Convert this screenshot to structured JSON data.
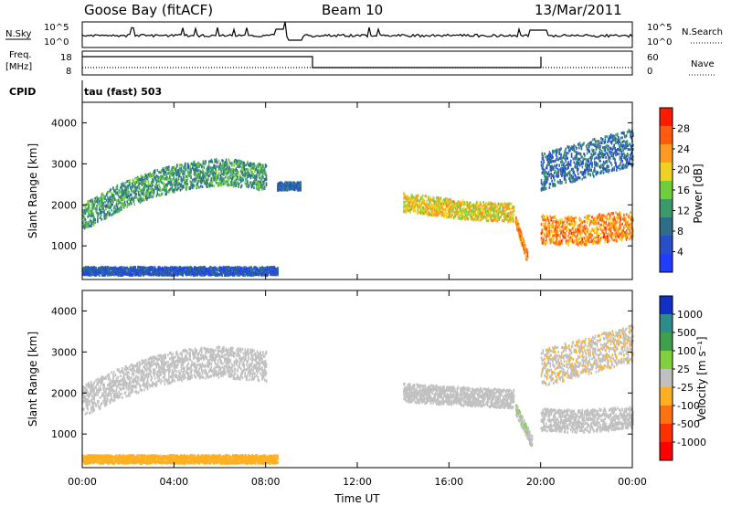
{
  "header": {
    "station": "Goose Bay (fitACF)",
    "beam": "Beam 10",
    "date": "13/Mar/2011"
  },
  "strips": {
    "nsky_label": "N.Sky",
    "nsearch_label": "N.Search",
    "freq_label_line1": "Freq.",
    "freq_label_line2": "[MHz]",
    "nave_label": "Nave",
    "cpid_label": "CPID",
    "cpid_value": "tau (fast) 503",
    "noise_ticks": [
      "10^5",
      "10^0"
    ],
    "freq_ticks": [
      "18",
      "8"
    ],
    "nave_ticks": [
      "60",
      "0"
    ]
  },
  "colors": {
    "ground_scatter": "#c0c0c0",
    "power_scale": [
      "#1f3cff",
      "#2750c8",
      "#2e6e8a",
      "#3a9a6a",
      "#6fcf3a",
      "#f0d020",
      "#ff9a20",
      "#ff5a10",
      "#ff1a00"
    ],
    "velocity_scale": [
      "#1030c8",
      "#2c8c8c",
      "#3ea04a",
      "#80d040",
      "#c0c0c0",
      "#ffb020",
      "#ff7010",
      "#ff3000",
      "#ff0000"
    ]
  },
  "chart_data": [
    {
      "type": "heatmap",
      "name": "Power",
      "xlabel": "",
      "ylabel": "Slant Range [km]",
      "xlim": [
        "00:00",
        "24:00"
      ],
      "ylim": [
        180,
        4500
      ],
      "y_ticks": [
        1000,
        2000,
        3000,
        4000
      ],
      "colorbar": {
        "label": "Power [dB]",
        "ticks": [
          4,
          8,
          12,
          16,
          20,
          24,
          28
        ],
        "range": [
          0,
          32
        ]
      },
      "bands": [
        {
          "t": [
            0.0,
            1.5,
            3.0,
            4.5,
            6.0,
            7.0,
            8.0
          ],
          "center": [
            1700,
            2150,
            2500,
            2700,
            2800,
            2750,
            2650
          ],
          "width": 650,
          "value": 12
        },
        {
          "t": [
            8.5,
            9.5
          ],
          "center": [
            2450,
            2450
          ],
          "width": 200,
          "value": 8
        },
        {
          "t": [
            14.0,
            15.5,
            17.0,
            18.8
          ],
          "center": [
            2050,
            1950,
            1850,
            1800
          ],
          "width": 450,
          "value": 20
        },
        {
          "t": [
            18.9,
            19.4
          ],
          "center": [
            1600,
            700
          ],
          "width": 300,
          "value": 24
        },
        {
          "t": [
            20.0,
            21.5,
            23.0,
            24.0
          ],
          "center": [
            1400,
            1350,
            1450,
            1500
          ],
          "width": 700,
          "value": 24
        },
        {
          "t": [
            20.0,
            24.0
          ],
          "center": [
            2800,
            3400
          ],
          "width": 900,
          "value": 8
        },
        {
          "t": [
            0.0,
            8.5
          ],
          "center": [
            380,
            380
          ],
          "width": 200,
          "value": 6
        }
      ]
    },
    {
      "type": "heatmap",
      "name": "Velocity",
      "xlabel": "Time UT",
      "ylabel": "Slant Range [km]",
      "xlim": [
        "00:00",
        "24:00"
      ],
      "ylim": [
        180,
        4500
      ],
      "x_ticks": [
        "00:00",
        "04:00",
        "08:00",
        "12:00",
        "16:00",
        "20:00",
        "00:00"
      ],
      "y_ticks": [
        1000,
        2000,
        3000,
        4000
      ],
      "colorbar": {
        "label": "Velocity [m s⁻¹]",
        "ticks": [
          1000,
          500,
          100,
          25,
          -25,
          -100,
          -500,
          -1000
        ],
        "range": [
          -1250,
          1250
        ]
      },
      "bands": [
        {
          "t": [
            0.0,
            1.5,
            3.0,
            4.5,
            6.0,
            7.0,
            8.0
          ],
          "center": [
            1800,
            2200,
            2500,
            2700,
            2750,
            2700,
            2650
          ],
          "width": 750,
          "value": 0,
          "ground": true
        },
        {
          "t": [
            14.0,
            15.5,
            17.0,
            18.8
          ],
          "center": [
            2000,
            1950,
            1900,
            1850
          ],
          "width": 450,
          "value": 0,
          "ground": true
        },
        {
          "t": [
            20.0,
            21.5,
            23.0,
            24.0
          ],
          "center": [
            1350,
            1300,
            1350,
            1400
          ],
          "width": 550,
          "value": 0,
          "ground": true
        },
        {
          "t": [
            20.0,
            24.0
          ],
          "center": [
            2600,
            3200
          ],
          "width": 900,
          "value": -100
        },
        {
          "t": [
            18.9,
            19.6
          ],
          "center": [
            1600,
            800
          ],
          "width": 300,
          "value": 100
        },
        {
          "t": [
            0.0,
            8.5
          ],
          "center": [
            380,
            380
          ],
          "width": 200,
          "value": -300
        }
      ]
    }
  ]
}
